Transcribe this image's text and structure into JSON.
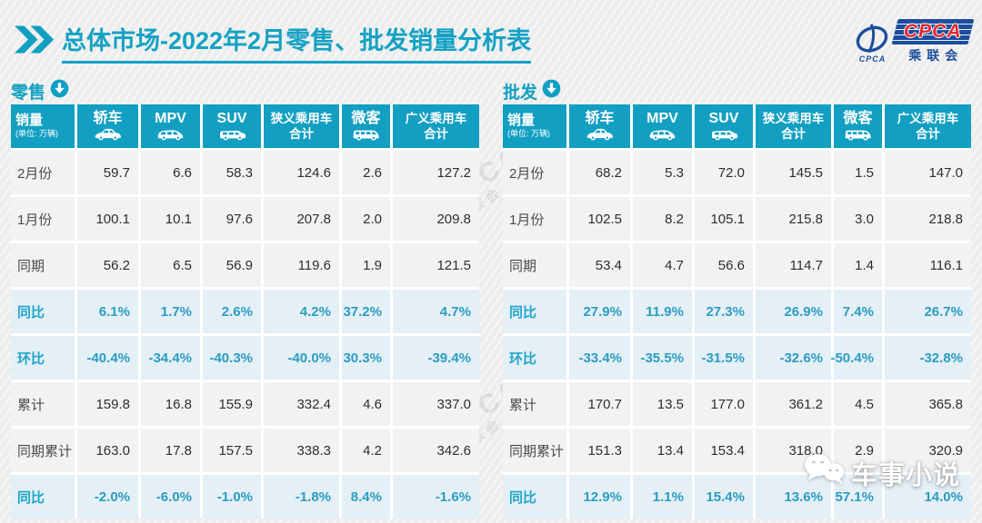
{
  "header": {
    "title_strong": "总体市场",
    "title_rest": "-2022年2月零售、批发销量分析表"
  },
  "logo": {
    "acronym": "CPCA",
    "name_cn": "乘联会",
    "mark_caption": "CPCA"
  },
  "background_watermark": {
    "line1": "CPCA",
    "line2": "乘联会"
  },
  "social_watermark": {
    "text": "车事小说"
  },
  "colors": {
    "teal_header": "#129fc2",
    "title_teal": "#14a2c4",
    "highlight_bg": "#e4eff6",
    "highlight_text": "#2b9dc2",
    "logo_blue": "#1c4e9c",
    "logo_red": "#e8262d"
  },
  "chart_data": [
    {
      "type": "table",
      "title": "零售",
      "unit_label": "销量",
      "unit_note": "(单位: 万辆)",
      "columns": [
        {
          "label": "轿车",
          "icon": "sedan-icon"
        },
        {
          "label": "MPV",
          "icon": "mpv-icon"
        },
        {
          "label": "SUV",
          "icon": "suv-icon"
        },
        {
          "label": "狭义乘用车",
          "label2": "合计"
        },
        {
          "label": "微客",
          "icon": "van-icon"
        },
        {
          "label": "广义乘用车",
          "label2": "合计"
        }
      ],
      "rows": [
        {
          "label": "2月份",
          "highlight": false,
          "values": [
            "59.7",
            "6.6",
            "58.3",
            "124.6",
            "2.6",
            "127.2"
          ]
        },
        {
          "label": "1月份",
          "highlight": false,
          "values": [
            "100.1",
            "10.1",
            "97.6",
            "207.8",
            "2.0",
            "209.8"
          ]
        },
        {
          "label": "同期",
          "highlight": false,
          "values": [
            "56.2",
            "6.5",
            "56.9",
            "119.6",
            "1.9",
            "121.5"
          ]
        },
        {
          "label": "同比",
          "highlight": true,
          "values": [
            "6.1%",
            "1.7%",
            "2.6%",
            "4.2%",
            "37.2%",
            "4.7%"
          ]
        },
        {
          "label": "环比",
          "highlight": true,
          "values": [
            "-40.4%",
            "-34.4%",
            "-40.3%",
            "-40.0%",
            "30.3%",
            "-39.4%"
          ]
        },
        {
          "label": "累计",
          "highlight": false,
          "values": [
            "159.8",
            "16.8",
            "155.9",
            "332.4",
            "4.6",
            "337.0"
          ]
        },
        {
          "label": "同期累计",
          "highlight": false,
          "values": [
            "163.0",
            "17.8",
            "157.5",
            "338.3",
            "4.2",
            "342.6"
          ]
        },
        {
          "label": "同比",
          "highlight": true,
          "values": [
            "-2.0%",
            "-6.0%",
            "-1.0%",
            "-1.8%",
            "8.4%",
            "-1.6%"
          ]
        }
      ]
    },
    {
      "type": "table",
      "title": "批发",
      "unit_label": "销量",
      "unit_note": "(单位: 万辆)",
      "columns": [
        {
          "label": "轿车",
          "icon": "sedan-icon"
        },
        {
          "label": "MPV",
          "icon": "mpv-icon"
        },
        {
          "label": "SUV",
          "icon": "suv-icon"
        },
        {
          "label": "狭义乘用车",
          "label2": "合计"
        },
        {
          "label": "微客",
          "icon": "van-icon"
        },
        {
          "label": "广义乘用车",
          "label2": "合计"
        }
      ],
      "rows": [
        {
          "label": "2月份",
          "highlight": false,
          "values": [
            "68.2",
            "5.3",
            "72.0",
            "145.5",
            "1.5",
            "147.0"
          ]
        },
        {
          "label": "1月份",
          "highlight": false,
          "values": [
            "102.5",
            "8.2",
            "105.1",
            "215.8",
            "3.0",
            "218.8"
          ]
        },
        {
          "label": "同期",
          "highlight": false,
          "values": [
            "53.4",
            "4.7",
            "56.6",
            "114.7",
            "1.4",
            "116.1"
          ]
        },
        {
          "label": "同比",
          "highlight": true,
          "values": [
            "27.9%",
            "11.9%",
            "27.3%",
            "26.9%",
            "7.4%",
            "26.7%"
          ]
        },
        {
          "label": "环比",
          "highlight": true,
          "values": [
            "-33.4%",
            "-35.5%",
            "-31.5%",
            "-32.6%",
            "-50.4%",
            "-32.8%"
          ]
        },
        {
          "label": "累计",
          "highlight": false,
          "values": [
            "170.7",
            "13.5",
            "177.0",
            "361.2",
            "4.5",
            "365.8"
          ]
        },
        {
          "label": "同期累计",
          "highlight": false,
          "values": [
            "151.3",
            "13.4",
            "153.4",
            "318.0",
            "2.9",
            "320.9"
          ]
        },
        {
          "label": "同比",
          "highlight": true,
          "values": [
            "12.9%",
            "1.1%",
            "15.4%",
            "13.6%",
            "57.1%",
            "14.0%"
          ]
        }
      ]
    }
  ]
}
